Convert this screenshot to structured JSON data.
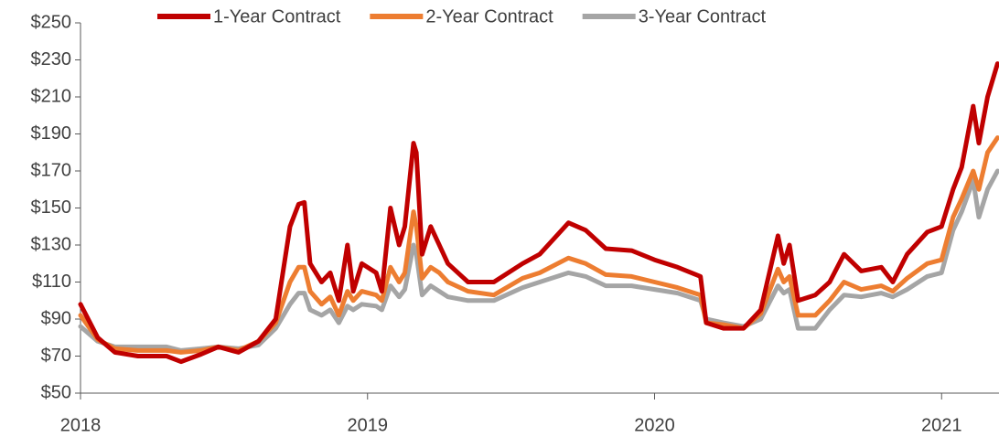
{
  "chart_data": {
    "type": "line",
    "x": [
      2018.0,
      2018.06,
      2018.12,
      2018.2,
      2018.3,
      2018.35,
      2018.42,
      2018.48,
      2018.55,
      2018.62,
      2018.68,
      2018.73,
      2018.76,
      2018.78,
      2018.8,
      2018.84,
      2018.87,
      2018.9,
      2018.93,
      2018.95,
      2018.98,
      2019.03,
      2019.05,
      2019.08,
      2019.11,
      2019.13,
      2019.16,
      2019.17,
      2019.19,
      2019.22,
      2019.25,
      2019.28,
      2019.35,
      2019.44,
      2019.54,
      2019.6,
      2019.7,
      2019.76,
      2019.83,
      2019.92,
      2020.0,
      2020.08,
      2020.16,
      2020.18,
      2020.24,
      2020.31,
      2020.37,
      2020.43,
      2020.45,
      2020.47,
      2020.5,
      2020.56,
      2020.61,
      2020.66,
      2020.72,
      2020.79,
      2020.83,
      2020.88,
      2020.95,
      2021.0,
      2021.04,
      2021.07,
      2021.11,
      2021.13,
      2021.16,
      2021.195
    ],
    "series": [
      {
        "name": "1-Year Contract",
        "color": "#c00000",
        "values": [
          98,
          80,
          72,
          70,
          70,
          67,
          71,
          75,
          72,
          78,
          90,
          140,
          152,
          153,
          120,
          110,
          115,
          100,
          130,
          105,
          120,
          115,
          105,
          150,
          130,
          140,
          185,
          180,
          125,
          140,
          130,
          120,
          110,
          110,
          120,
          125,
          142,
          138,
          128,
          127,
          122,
          118,
          113,
          88,
          85,
          85,
          95,
          135,
          120,
          130,
          100,
          103,
          110,
          125,
          116,
          118,
          110,
          125,
          137,
          140,
          160,
          172,
          205,
          185,
          210,
          228
        ]
      },
      {
        "name": "2-Year Contract",
        "color": "#ed7d31",
        "values": [
          92,
          79,
          74,
          73,
          73,
          72,
          73,
          75,
          73,
          78,
          88,
          110,
          118,
          118,
          105,
          98,
          102,
          92,
          105,
          100,
          105,
          103,
          100,
          118,
          110,
          115,
          148,
          140,
          112,
          118,
          115,
          110,
          105,
          103,
          112,
          115,
          123,
          120,
          114,
          113,
          110,
          107,
          103,
          88,
          87,
          85,
          93,
          117,
          110,
          113,
          92,
          92,
          100,
          110,
          106,
          108,
          105,
          112,
          120,
          122,
          145,
          155,
          170,
          160,
          180,
          188
        ]
      },
      {
        "name": "3-Year Contract",
        "color": "#a5a5a5",
        "values": [
          86,
          78,
          75,
          75,
          75,
          73,
          74,
          75,
          74,
          76,
          85,
          98,
          104,
          104,
          95,
          92,
          95,
          88,
          97,
          95,
          98,
          97,
          95,
          108,
          102,
          106,
          130,
          125,
          103,
          108,
          105,
          102,
          100,
          100,
          107,
          110,
          115,
          113,
          108,
          108,
          106,
          104,
          100,
          90,
          88,
          86,
          90,
          108,
          104,
          106,
          85,
          85,
          95,
          103,
          102,
          104,
          102,
          106,
          113,
          115,
          138,
          148,
          165,
          145,
          160,
          170
        ]
      }
    ],
    "xlim": [
      2018,
      2021.2
    ],
    "xticks": [
      2018,
      2019,
      2020,
      2021
    ],
    "ylim": [
      50,
      250
    ],
    "yticks": [
      {
        "value": 50,
        "label": "$50"
      },
      {
        "value": 70,
        "label": "$70"
      },
      {
        "value": 90,
        "label": "$90"
      },
      {
        "value": 110,
        "label": "$110"
      },
      {
        "value": 130,
        "label": "$130"
      },
      {
        "value": 150,
        "label": "$150"
      },
      {
        "value": 170,
        "label": "$170"
      },
      {
        "value": 190,
        "label": "$190"
      },
      {
        "value": 210,
        "label": "$210"
      },
      {
        "value": 230,
        "label": "$230"
      },
      {
        "value": 250,
        "label": "$250"
      }
    ],
    "legend": "top"
  }
}
